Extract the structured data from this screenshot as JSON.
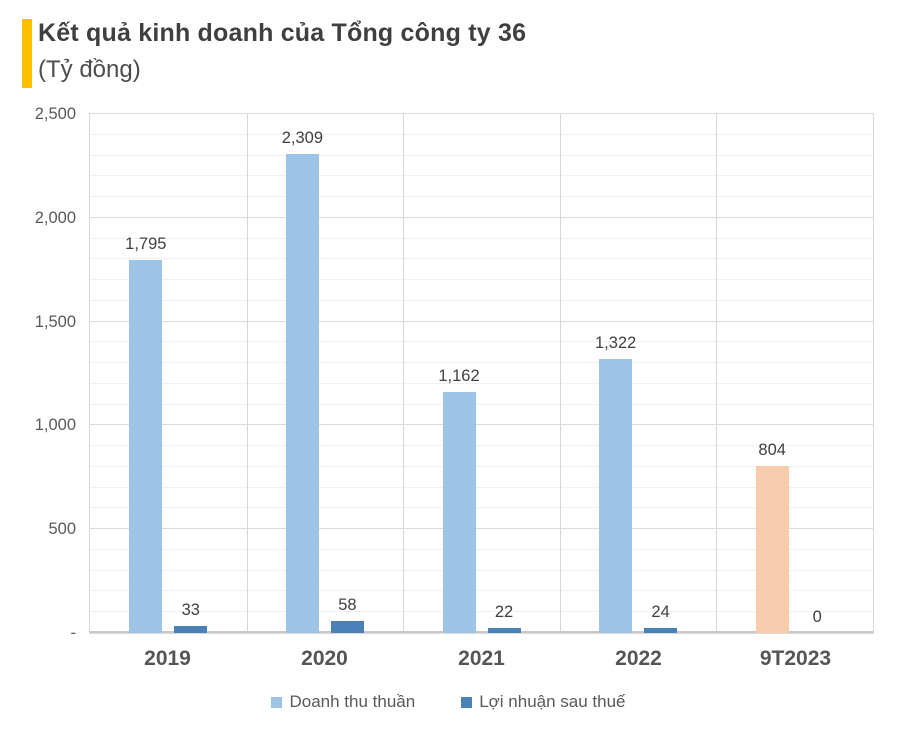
{
  "header": {
    "accent_color": "#FFC000"
  },
  "chart_data": {
    "type": "bar",
    "title": "Kết quả kinh doanh của Tổng công ty 36",
    "subtitle": "(Tỷ đồng)",
    "categories": [
      "2019",
      "2020",
      "2021",
      "2022",
      "9T2023"
    ],
    "series": [
      {
        "name": "Doanh thu thuần",
        "values": [
          1795,
          2309,
          1162,
          1322,
          804
        ],
        "labels": [
          "1,795",
          "2,309",
          "1,162",
          "1,322",
          "804"
        ],
        "colors": [
          "#9DC3E6",
          "#9DC3E6",
          "#9DC3E6",
          "#9DC3E6",
          "#F8CBAD"
        ],
        "legend_color": "#9DC3E6"
      },
      {
        "name": "Lợi nhuận sau thuế",
        "values": [
          33,
          58,
          22,
          24,
          0
        ],
        "labels": [
          "33",
          "58",
          "22",
          "24",
          "0"
        ],
        "colors": [
          "#4A81B8",
          "#4A81B8",
          "#4A81B8",
          "#4A81B8",
          "#4A81B8"
        ],
        "legend_color": "#4A81B8"
      }
    ],
    "ylim": [
      0,
      2500
    ],
    "y_major_interval": 500,
    "y_minor_interval": 100,
    "y_axis_ticks_bottom_up": [
      "-",
      "500",
      "1,000",
      "1,500",
      "2,000",
      "2,500"
    ],
    "grid": true,
    "legend_position": "bottom"
  }
}
